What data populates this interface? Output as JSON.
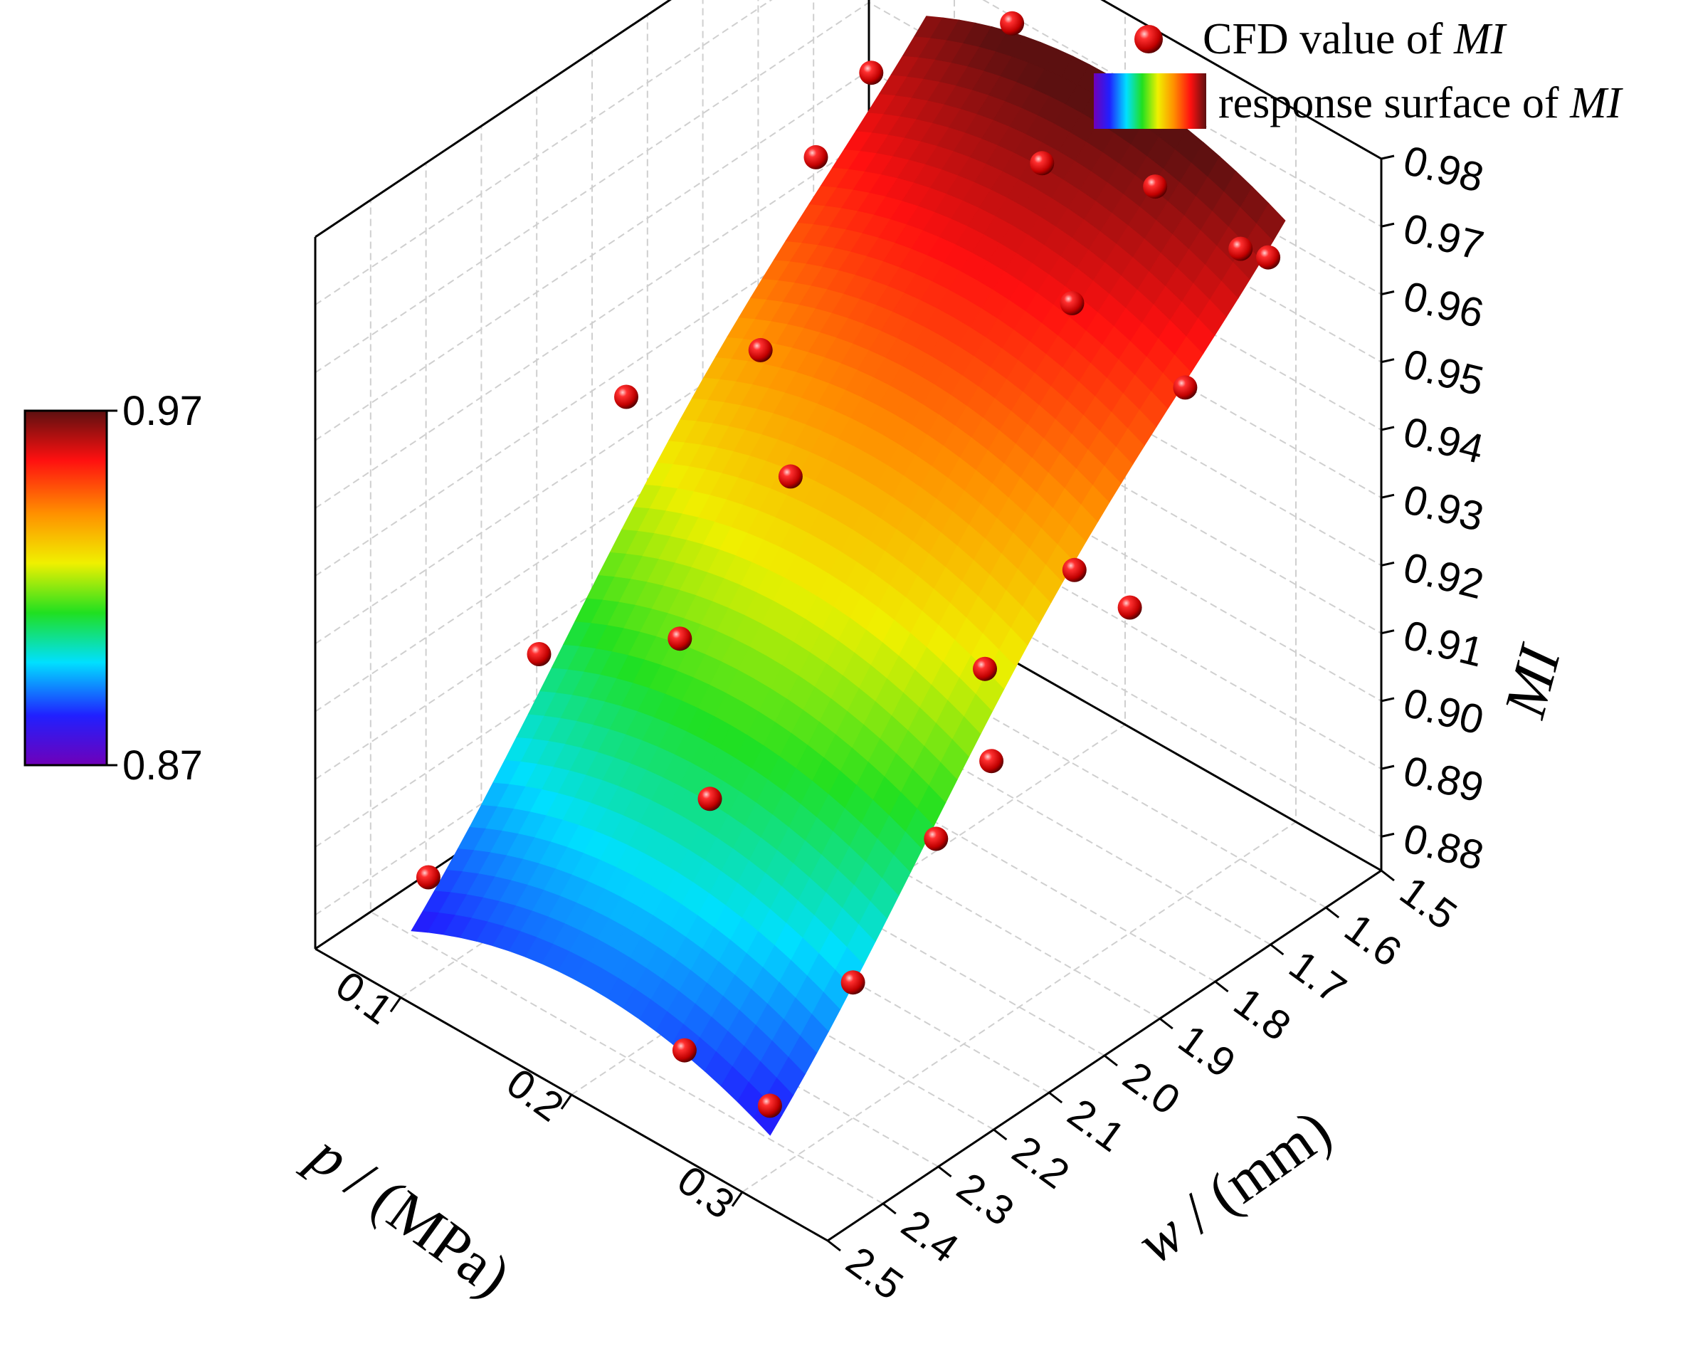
{
  "chart_data": {
    "type": "surface3d",
    "title": "",
    "x": {
      "label_var": "p",
      "label_unit": " / (MPa)",
      "ticks": [
        "0.1",
        "0.2",
        "0.3"
      ],
      "range": [
        0.05,
        0.35
      ]
    },
    "y": {
      "label_var": "w",
      "label_unit": " / (mm)",
      "ticks": [
        "1.5",
        "1.6",
        "1.7",
        "1.8",
        "1.9",
        "2.0",
        "2.1",
        "2.2",
        "2.3",
        "2.4",
        "2.5"
      ],
      "range": [
        1.5,
        2.5
      ]
    },
    "z": {
      "label": "MI",
      "ticks": [
        "0.88",
        "0.89",
        "0.90",
        "0.91",
        "0.92",
        "0.93",
        "0.94",
        "0.95",
        "0.96",
        "0.97",
        "0.98"
      ],
      "range": [
        0.875,
        0.98
      ]
    },
    "colorbar": {
      "max_label": "0.97",
      "min_label": "0.87",
      "range": [
        0.87,
        0.97
      ]
    },
    "legend": {
      "points_label_prefix": "CFD value of ",
      "surface_label_prefix": "response surface of ",
      "var": "MI"
    },
    "colormap": [
      "#7000b8",
      "#2020ff",
      "#00e0ff",
      "#20e020",
      "#f0f000",
      "#ff9000",
      "#ff1010",
      "#5c1010"
    ],
    "cfd_points": [
      {
        "p": 0.3,
        "w": 2.45,
        "MI": 0.885
      },
      {
        "p": 0.25,
        "w": 2.45,
        "MI": 0.886
      },
      {
        "p": 0.1,
        "w": 2.45,
        "MI": 0.89
      },
      {
        "p": 0.3,
        "w": 2.3,
        "MI": 0.895
      },
      {
        "p": 0.2,
        "w": 2.25,
        "MI": 0.905
      },
      {
        "p": 0.3,
        "w": 2.15,
        "MI": 0.908
      },
      {
        "p": 0.3,
        "w": 2.05,
        "MI": 0.914
      },
      {
        "p": 0.1,
        "w": 2.25,
        "MI": 0.912
      },
      {
        "p": 0.15,
        "w": 2.15,
        "MI": 0.916
      },
      {
        "p": 0.28,
        "w": 2.0,
        "MI": 0.922
      },
      {
        "p": 0.3,
        "w": 1.8,
        "MI": 0.923
      },
      {
        "p": 0.15,
        "w": 1.95,
        "MI": 0.929
      },
      {
        "p": 0.3,
        "w": 1.9,
        "MI": 0.934
      },
      {
        "p": 0.07,
        "w": 2.0,
        "MI": 0.932
      },
      {
        "p": 0.1,
        "w": 1.85,
        "MI": 0.935
      },
      {
        "p": 0.3,
        "w": 1.7,
        "MI": 0.95
      },
      {
        "p": 0.25,
        "w": 1.75,
        "MI": 0.958
      },
      {
        "p": 0.1,
        "w": 1.75,
        "MI": 0.958
      },
      {
        "p": 0.2,
        "w": 1.65,
        "MI": 0.966
      },
      {
        "p": 0.3,
        "w": 1.55,
        "MI": 0.961
      },
      {
        "p": 0.3,
        "w": 1.6,
        "MI": 0.965
      },
      {
        "p": 0.1,
        "w": 1.65,
        "MI": 0.965
      },
      {
        "p": 0.25,
        "w": 1.6,
        "MI": 0.967
      },
      {
        "p": 0.15,
        "w": 1.55,
        "MI": 0.974
      },
      {
        "p": 0.05,
        "w": 1.65,
        "MI": 0.976
      },
      {
        "p": 0.1,
        "w": 1.5,
        "MI": 0.97
      }
    ]
  }
}
